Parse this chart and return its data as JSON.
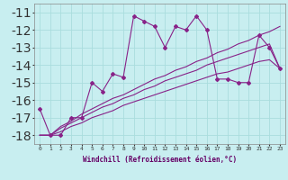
{
  "title": "",
  "xlabel": "Windchill (Refroidissement éolien,°C)",
  "ylabel": "",
  "bg_color": "#c8eef0",
  "grid_color": "#aadddd",
  "line_color": "#882288",
  "xlim": [
    -0.5,
    23.5
  ],
  "ylim": [
    -18.5,
    -10.5
  ],
  "yticks": [
    -18,
    -17,
    -16,
    -15,
    -14,
    -13,
    -12,
    -11
  ],
  "xticks": [
    0,
    1,
    2,
    3,
    4,
    5,
    6,
    7,
    8,
    9,
    10,
    11,
    12,
    13,
    14,
    15,
    16,
    17,
    18,
    19,
    20,
    21,
    22,
    23
  ],
  "series": [
    [
      -16.5,
      -18.0,
      -18.0,
      -17.0,
      -17.0,
      -15.0,
      -15.5,
      -14.5,
      -14.7,
      -11.2,
      -11.5,
      -11.8,
      -13.0,
      -11.8,
      -12.0,
      -11.2,
      -12.0,
      -14.8,
      -14.8,
      -15.0,
      -15.0,
      -12.3,
      -13.0,
      -14.2
    ],
    [
      -18.0,
      -18.0,
      -17.5,
      -17.2,
      -16.8,
      -16.5,
      -16.2,
      -15.9,
      -15.7,
      -15.4,
      -15.1,
      -14.8,
      -14.6,
      -14.3,
      -14.1,
      -13.8,
      -13.6,
      -13.3,
      -13.1,
      -12.8,
      -12.6,
      -12.3,
      -12.1,
      -11.8
    ],
    [
      -18.0,
      -18.0,
      -17.6,
      -17.3,
      -17.0,
      -16.7,
      -16.4,
      -16.2,
      -15.9,
      -15.7,
      -15.4,
      -15.2,
      -14.9,
      -14.7,
      -14.5,
      -14.3,
      -14.0,
      -13.8,
      -13.6,
      -13.4,
      -13.2,
      -13.0,
      -12.8,
      -14.2
    ],
    [
      -18.0,
      -18.0,
      -17.8,
      -17.5,
      -17.3,
      -17.0,
      -16.8,
      -16.6,
      -16.3,
      -16.1,
      -15.9,
      -15.7,
      -15.5,
      -15.3,
      -15.1,
      -14.9,
      -14.7,
      -14.5,
      -14.4,
      -14.2,
      -14.0,
      -13.8,
      -13.7,
      -14.2
    ]
  ],
  "xlabel_fontsize": 5.5,
  "xlabel_color": "#660066",
  "xtick_fontsize": 4.5,
  "ytick_fontsize": 5.5,
  "linewidth": 0.8,
  "marker_size": 2.0
}
